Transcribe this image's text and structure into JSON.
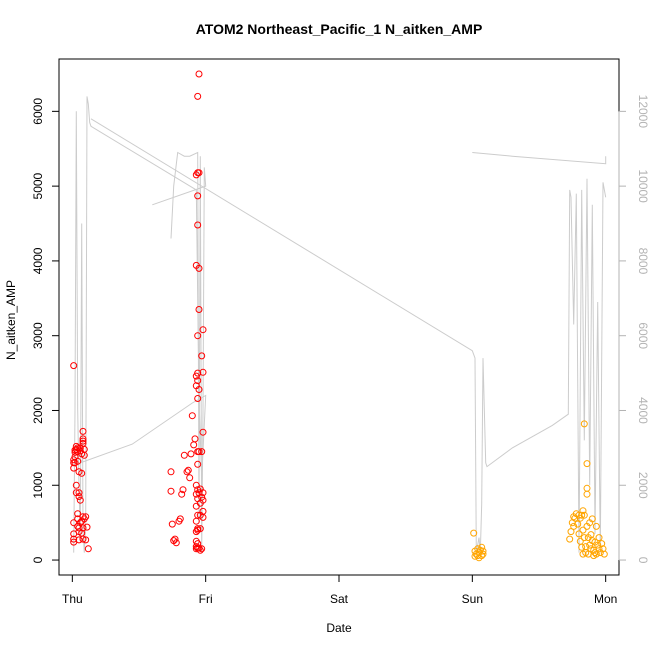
{
  "chart_data": {
    "type": "scatter",
    "title": "ATOM2 Northeast_Pacific_1 N_aitken_AMP",
    "xlabel": "Date",
    "ylabel": "N_aitken_AMP",
    "x_ticks": [
      {
        "label": "Thu",
        "value": 0
      },
      {
        "label": "Fri",
        "value": 1
      },
      {
        "label": "Sat",
        "value": 2
      },
      {
        "label": "Sun",
        "value": 3
      },
      {
        "label": "Mon",
        "value": 4
      }
    ],
    "y_ticks": [
      0,
      1000,
      2000,
      3000,
      4000,
      5000,
      6000
    ],
    "y2_ticks": [
      0,
      2000,
      4000,
      6000,
      8000,
      10000,
      12000
    ],
    "xlim": [
      -0.1,
      4.1
    ],
    "ylim": [
      -200,
      6700
    ],
    "y2lim": [
      -400,
      13400
    ],
    "colors": {
      "series_a": "#ff0000",
      "series_b": "#ffa500",
      "secondary_line": "#cccccc",
      "axis": "#000000",
      "axis2": "#b3b3b3"
    },
    "series": [
      {
        "color": "#ff0000",
        "points": [
          [
            0.01,
            2600
          ],
          [
            0.01,
            1340
          ],
          [
            0.01,
            1300
          ],
          [
            0.01,
            1230
          ],
          [
            0.01,
            500
          ],
          [
            0.01,
            350
          ],
          [
            0.01,
            280
          ],
          [
            0.01,
            240
          ],
          [
            0.02,
            1380
          ],
          [
            0.02,
            1440
          ],
          [
            0.02,
            1470
          ],
          [
            0.02,
            1300
          ],
          [
            0.03,
            1520
          ],
          [
            0.03,
            1480
          ],
          [
            0.03,
            1000
          ],
          [
            0.03,
            900
          ],
          [
            0.04,
            1500
          ],
          [
            0.04,
            1450
          ],
          [
            0.04,
            1320
          ],
          [
            0.04,
            620
          ],
          [
            0.04,
            550
          ],
          [
            0.04,
            450
          ],
          [
            0.05,
            1180
          ],
          [
            0.05,
            900
          ],
          [
            0.05,
            850
          ],
          [
            0.05,
            430
          ],
          [
            0.05,
            380
          ],
          [
            0.05,
            270
          ],
          [
            0.06,
            1500
          ],
          [
            0.06,
            1460
          ],
          [
            0.06,
            800
          ],
          [
            0.06,
            500
          ],
          [
            0.07,
            1420
          ],
          [
            0.07,
            1160
          ],
          [
            0.07,
            520
          ],
          [
            0.07,
            360
          ],
          [
            0.08,
            1560
          ],
          [
            0.08,
            1590
          ],
          [
            0.08,
            1620
          ],
          [
            0.08,
            1720
          ],
          [
            0.08,
            580
          ],
          [
            0.08,
            430
          ],
          [
            0.08,
            280
          ],
          [
            0.09,
            1400
          ],
          [
            0.09,
            1480
          ],
          [
            0.09,
            550
          ],
          [
            0.1,
            580
          ],
          [
            0.1,
            270
          ],
          [
            0.11,
            440
          ],
          [
            0.12,
            150
          ],
          [
            0.74,
            1180
          ],
          [
            0.74,
            920
          ],
          [
            0.75,
            480
          ],
          [
            0.76,
            260
          ],
          [
            0.77,
            280
          ],
          [
            0.78,
            230
          ],
          [
            0.8,
            520
          ],
          [
            0.81,
            550
          ],
          [
            0.82,
            880
          ],
          [
            0.83,
            940
          ],
          [
            0.84,
            1400
          ],
          [
            0.86,
            1180
          ],
          [
            0.87,
            1200
          ],
          [
            0.88,
            1100
          ],
          [
            0.89,
            1420
          ],
          [
            0.9,
            1930
          ],
          [
            0.91,
            1540
          ],
          [
            0.92,
            1620
          ],
          [
            0.93,
            5150
          ],
          [
            0.93,
            3940
          ],
          [
            0.93,
            2460
          ],
          [
            0.93,
            2330
          ],
          [
            0.93,
            1000
          ],
          [
            0.93,
            880
          ],
          [
            0.93,
            720
          ],
          [
            0.93,
            520
          ],
          [
            0.93,
            380
          ],
          [
            0.93,
            250
          ],
          [
            0.93,
            180
          ],
          [
            0.93,
            150
          ],
          [
            0.94,
            6200
          ],
          [
            0.94,
            5180
          ],
          [
            0.94,
            4870
          ],
          [
            0.94,
            4480
          ],
          [
            0.94,
            3000
          ],
          [
            0.94,
            2400
          ],
          [
            0.94,
            2500
          ],
          [
            0.94,
            2160
          ],
          [
            0.94,
            1450
          ],
          [
            0.94,
            1280
          ],
          [
            0.94,
            940
          ],
          [
            0.94,
            820
          ],
          [
            0.94,
            600
          ],
          [
            0.94,
            420
          ],
          [
            0.94,
            400
          ],
          [
            0.94,
            220
          ],
          [
            0.94,
            160
          ],
          [
            0.95,
            6500
          ],
          [
            0.95,
            5180
          ],
          [
            0.95,
            3900
          ],
          [
            0.95,
            3350
          ],
          [
            0.95,
            2280
          ],
          [
            0.95,
            1450
          ],
          [
            0.95,
            900
          ],
          [
            0.95,
            160
          ],
          [
            0.96,
            950
          ],
          [
            0.96,
            760
          ],
          [
            0.96,
            600
          ],
          [
            0.96,
            420
          ],
          [
            0.96,
            130
          ],
          [
            0.97,
            2730
          ],
          [
            0.97,
            1450
          ],
          [
            0.97,
            840
          ],
          [
            0.97,
            150
          ],
          [
            0.98,
            3080
          ],
          [
            0.98,
            2510
          ],
          [
            0.98,
            1710
          ],
          [
            0.98,
            900
          ],
          [
            0.98,
            800
          ],
          [
            0.98,
            650
          ],
          [
            0.98,
            570
          ]
        ]
      },
      {
        "color": "#ffa500",
        "points": [
          [
            3.01,
            360
          ],
          [
            3.02,
            50
          ],
          [
            3.02,
            120
          ],
          [
            3.03,
            80
          ],
          [
            3.04,
            150
          ],
          [
            3.04,
            60
          ],
          [
            3.05,
            100
          ],
          [
            3.05,
            30
          ],
          [
            3.06,
            130
          ],
          [
            3.07,
            170
          ],
          [
            3.07,
            60
          ],
          [
            3.08,
            120
          ],
          [
            3.08,
            80
          ],
          [
            3.73,
            280
          ],
          [
            3.74,
            380
          ],
          [
            3.75,
            500
          ],
          [
            3.76,
            580
          ],
          [
            3.76,
            450
          ],
          [
            3.77,
            560
          ],
          [
            3.78,
            620
          ],
          [
            3.79,
            480
          ],
          [
            3.8,
            600
          ],
          [
            3.8,
            350
          ],
          [
            3.81,
            560
          ],
          [
            3.81,
            250
          ],
          [
            3.82,
            600
          ],
          [
            3.82,
            170
          ],
          [
            3.83,
            660
          ],
          [
            3.83,
            400
          ],
          [
            3.83,
            80
          ],
          [
            3.84,
            1820
          ],
          [
            3.84,
            600
          ],
          [
            3.84,
            300
          ],
          [
            3.85,
            180
          ],
          [
            3.85,
            100
          ],
          [
            3.86,
            1290
          ],
          [
            3.86,
            960
          ],
          [
            3.86,
            880
          ],
          [
            3.86,
            450
          ],
          [
            3.87,
            300
          ],
          [
            3.87,
            80
          ],
          [
            3.88,
            500
          ],
          [
            3.88,
            200
          ],
          [
            3.89,
            340
          ],
          [
            3.89,
            150
          ],
          [
            3.9,
            550
          ],
          [
            3.9,
            260
          ],
          [
            3.91,
            130
          ],
          [
            3.91,
            60
          ],
          [
            3.92,
            240
          ],
          [
            3.92,
            100
          ],
          [
            3.93,
            450
          ],
          [
            3.93,
            80
          ],
          [
            3.94,
            200
          ],
          [
            3.95,
            300
          ],
          [
            3.95,
            150
          ],
          [
            3.96,
            100
          ],
          [
            3.97,
            220
          ],
          [
            3.98,
            150
          ],
          [
            3.99,
            80
          ]
        ]
      }
    ],
    "secondary_line": {
      "color": "#cccccc",
      "segments": [
        [
          [
            0.01,
            200
          ],
          [
            0.02,
            4000
          ],
          [
            0.03,
            12000
          ],
          [
            0.04,
            4000
          ],
          [
            0.05,
            2000
          ],
          [
            0.06,
            500
          ],
          [
            0.07,
            9000
          ],
          [
            0.08,
            800
          ],
          [
            0.09,
            200
          ],
          [
            0.1,
            1000
          ],
          [
            0.11,
            12400
          ],
          [
            0.12,
            12200
          ],
          [
            0.13,
            11700
          ],
          [
            0.14,
            11600
          ],
          [
            0.93,
            9900
          ],
          [
            0.95,
            4300
          ],
          [
            0.97,
            2200
          ],
          [
            1.0,
            4400
          ],
          [
            0.9,
            4200
          ],
          [
            0.45,
            3100
          ],
          [
            0.06,
            2600
          ],
          [
            0.08,
            2700
          ]
        ],
        [
          [
            0.74,
            8600
          ],
          [
            0.76,
            10000
          ],
          [
            0.79,
            10900
          ],
          [
            0.84,
            10800
          ],
          [
            0.88,
            10800
          ],
          [
            0.94,
            10900
          ],
          [
            0.95,
            1000
          ],
          [
            0.96,
            10800
          ],
          [
            0.97,
            200
          ],
          [
            0.98,
            4000
          ],
          [
            0.99,
            10500
          ],
          [
            1.0,
            10000
          ],
          [
            0.6,
            9500
          ]
        ],
        [
          [
            0.14,
            11800
          ],
          [
            3.0,
            5600
          ],
          [
            3.02,
            5400
          ],
          [
            3.03,
            200
          ],
          [
            3.05,
            600
          ],
          [
            3.06,
            200
          ],
          [
            3.07,
            1500
          ],
          [
            3.08,
            5400
          ],
          [
            3.1,
            2600
          ],
          [
            3.11,
            2500
          ],
          [
            3.3,
            3000
          ],
          [
            3.6,
            3600
          ],
          [
            3.72,
            3900
          ],
          [
            3.73,
            9900
          ],
          [
            3.74,
            9700
          ],
          [
            3.76,
            6300
          ],
          [
            3.78,
            9800
          ],
          [
            3.8,
            200
          ],
          [
            3.82,
            9900
          ],
          [
            3.84,
            3200
          ],
          [
            3.86,
            10200
          ],
          [
            3.88,
            2000
          ],
          [
            3.9,
            9500
          ],
          [
            3.92,
            700
          ],
          [
            3.94,
            6900
          ],
          [
            3.96,
            200
          ],
          [
            3.98,
            10100
          ],
          [
            4.0,
            9700
          ]
        ],
        [
          [
            3.0,
            10900
          ],
          [
            3.3,
            10800
          ],
          [
            4.0,
            10600
          ],
          [
            4.0,
            10800
          ]
        ]
      ]
    }
  }
}
